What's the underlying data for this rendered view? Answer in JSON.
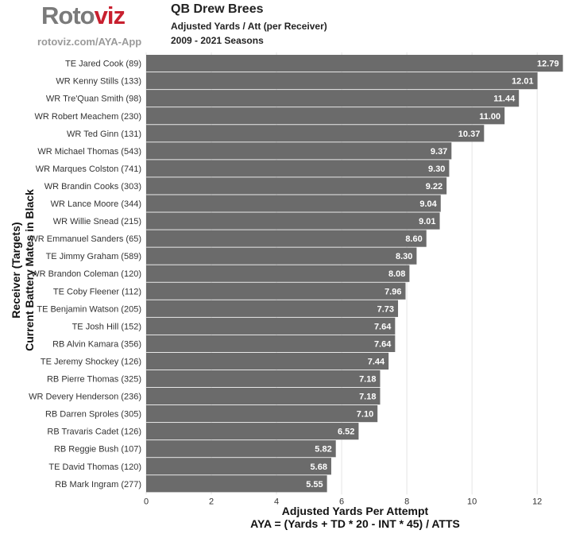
{
  "logo": {
    "part1": "Roto",
    "part2": "viz",
    "url": "rotoviz.com/AYA-App"
  },
  "header": {
    "title": "QB Drew Brees",
    "subtitle": "Adjusted Yards / Att (per Receiver)",
    "seasons": "2009 - 2021 Seasons"
  },
  "colors": {
    "bar": "#6b6b6b",
    "grid": "#e4e4e4",
    "value_label": "#ffffff",
    "logo_accent": "#c8202f"
  },
  "chart_data": {
    "type": "bar",
    "orientation": "horizontal",
    "ylabel_line1": "Receiver (Targets)",
    "ylabel_line2": "Current Battery Mates in Black",
    "xlabel_line1": "Adjusted Yards Per Attempt",
    "xlabel_line2": "AYA = (Yards + TD * 20 - INT * 45) / ATTS",
    "xlim": [
      0,
      12.8
    ],
    "xticks": [
      "0",
      "2",
      "4",
      "6",
      "8",
      "10",
      "12"
    ],
    "grid": "vertical",
    "categories": [
      "TE Jared Cook (89)",
      "WR Kenny Stills (133)",
      "WR Tre'Quan Smith (98)",
      "WR Robert Meachem (230)",
      "WR Ted Ginn (131)",
      "WR Michael Thomas (543)",
      "WR Marques Colston (741)",
      "WR Brandin Cooks (303)",
      "WR Lance Moore (344)",
      "WR Willie Snead (215)",
      "WR Emmanuel Sanders (65)",
      "TE Jimmy Graham (589)",
      "WR Brandon Coleman (120)",
      "TE Coby Fleener (112)",
      "TE Benjamin Watson (205)",
      "TE Josh Hill (152)",
      "RB Alvin Kamara (356)",
      "TE Jeremy Shockey (126)",
      "RB Pierre Thomas (325)",
      "WR Devery Henderson (236)",
      "RB Darren Sproles (305)",
      "RB Travaris Cadet (126)",
      "RB Reggie Bush (107)",
      "TE David Thomas (120)",
      "RB Mark Ingram (277)"
    ],
    "values": [
      12.79,
      12.01,
      11.44,
      11.0,
      10.37,
      9.37,
      9.3,
      9.22,
      9.04,
      9.01,
      8.6,
      8.3,
      8.08,
      7.96,
      7.73,
      7.64,
      7.64,
      7.44,
      7.18,
      7.18,
      7.1,
      6.52,
      5.82,
      5.68,
      5.55
    ],
    "value_labels": [
      "12.79",
      "12.01",
      "11.44",
      "11.00",
      "10.37",
      "9.37",
      "9.30",
      "9.22",
      "9.04",
      "9.01",
      "8.60",
      "8.30",
      "8.08",
      "7.96",
      "7.73",
      "7.64",
      "7.64",
      "7.44",
      "7.18",
      "7.18",
      "7.10",
      "6.52",
      "5.82",
      "5.68",
      "5.55"
    ]
  }
}
